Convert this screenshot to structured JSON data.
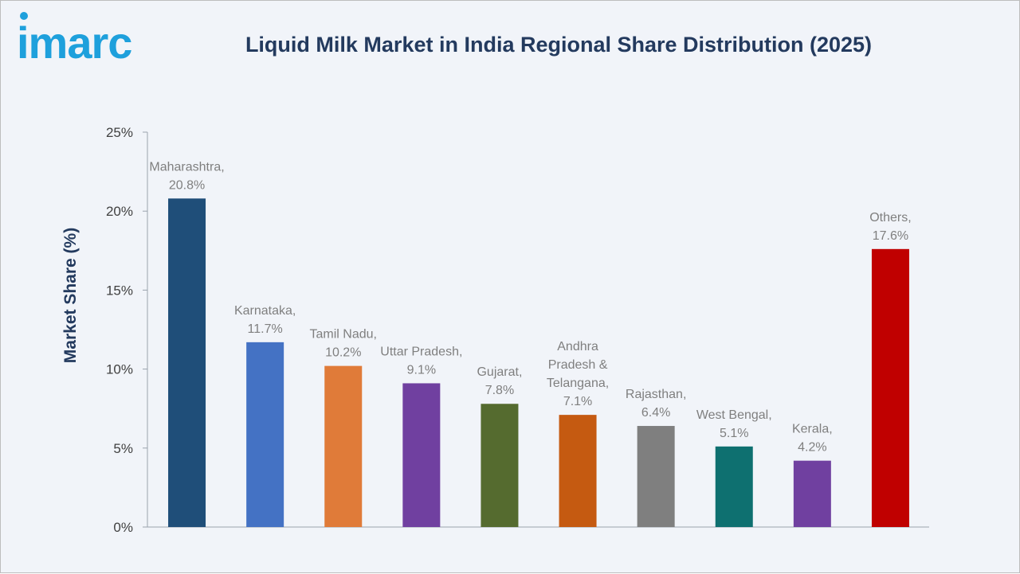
{
  "brand": {
    "logo_text": "imarc",
    "logo_color": "#1ea0dc"
  },
  "chart_data": {
    "type": "bar",
    "title": "Liquid Milk Market in India Regional Share Distribution (2025)",
    "xlabel": "",
    "ylabel": "Market Share (%)",
    "ylim": [
      0,
      25
    ],
    "yticks": [
      0,
      5,
      10,
      15,
      20,
      25
    ],
    "ytick_labels": [
      "0%",
      "5%",
      "10%",
      "15%",
      "20%",
      "25%"
    ],
    "grid": false,
    "legend": "none",
    "categories": [
      "Maharashtra",
      "Karnataka",
      "Tamil Nadu",
      "Uttar Pradesh",
      "Gujarat",
      "Andhra Pradesh & Telangana",
      "Rajasthan",
      "West Bengal",
      "Kerala",
      "Others"
    ],
    "values": [
      20.8,
      11.7,
      10.2,
      9.1,
      7.8,
      7.1,
      6.4,
      5.1,
      4.2,
      17.6
    ],
    "data_labels": [
      [
        "Maharashtra,",
        "20.8%"
      ],
      [
        "Karnataka,",
        "11.7%"
      ],
      [
        "Tamil Nadu,",
        "10.2%"
      ],
      [
        "Uttar Pradesh,",
        "9.1%"
      ],
      [
        "Gujarat,",
        "7.8%"
      ],
      [
        "Andhra",
        "Pradesh &",
        "Telangana,",
        "7.1%"
      ],
      [
        "Rajasthan,",
        "6.4%"
      ],
      [
        "West Bengal,",
        "5.1%"
      ],
      [
        "Kerala,",
        "4.2%"
      ],
      [
        "Others,",
        "17.6%"
      ]
    ],
    "colors": [
      "#1f4e79",
      "#4472c4",
      "#e07b39",
      "#7040a0",
      "#556b2f",
      "#c55a11",
      "#7f7f7f",
      "#0e7070",
      "#7040a0",
      "#c00000"
    ],
    "label_color": "#7f7f7f",
    "axis_color": "#233a5e"
  }
}
